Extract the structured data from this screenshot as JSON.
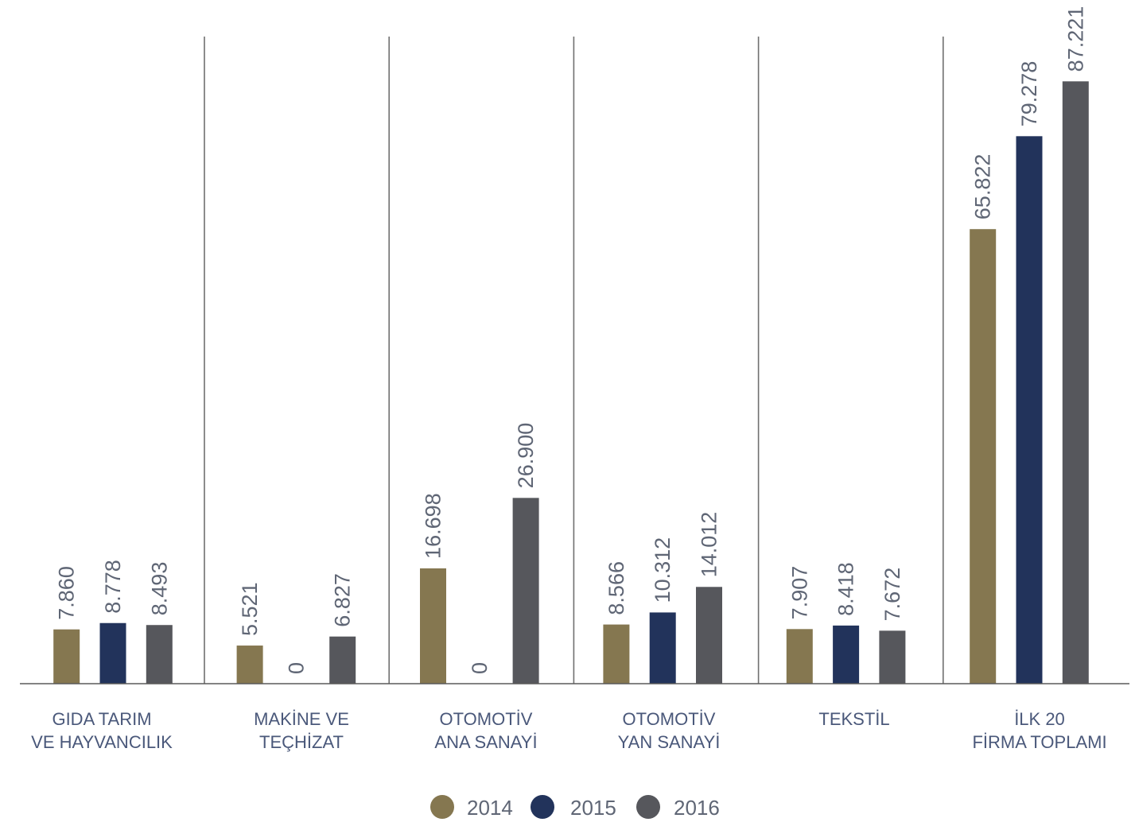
{
  "chart_data": {
    "type": "bar",
    "categories": [
      [
        "GIDA TARIM",
        "VE HAYVANCILIK"
      ],
      [
        "MAKİNE VE",
        "TEÇHİZAT"
      ],
      [
        "OTOMOTİV",
        "ANA SANAYİ"
      ],
      [
        "OTOMOTİV",
        "YAN SANAYİ"
      ],
      [
        "TEKSTİL"
      ],
      [
        "İLK 20",
        "FİRMA TOPLAMI"
      ]
    ],
    "series": [
      {
        "name": "2014",
        "color": "#857750",
        "values": [
          7860,
          5521,
          16698,
          8566,
          7907,
          65822
        ]
      },
      {
        "name": "2015",
        "color": "#22335b",
        "values": [
          8778,
          0,
          0,
          10312,
          8418,
          79278
        ]
      },
      {
        "name": "2016",
        "color": "#56575c",
        "values": [
          8493,
          6827,
          26900,
          14012,
          7672,
          87221
        ]
      }
    ],
    "ylim": [
      0,
      99000
    ],
    "grid": false,
    "legend": "bottom-center"
  }
}
